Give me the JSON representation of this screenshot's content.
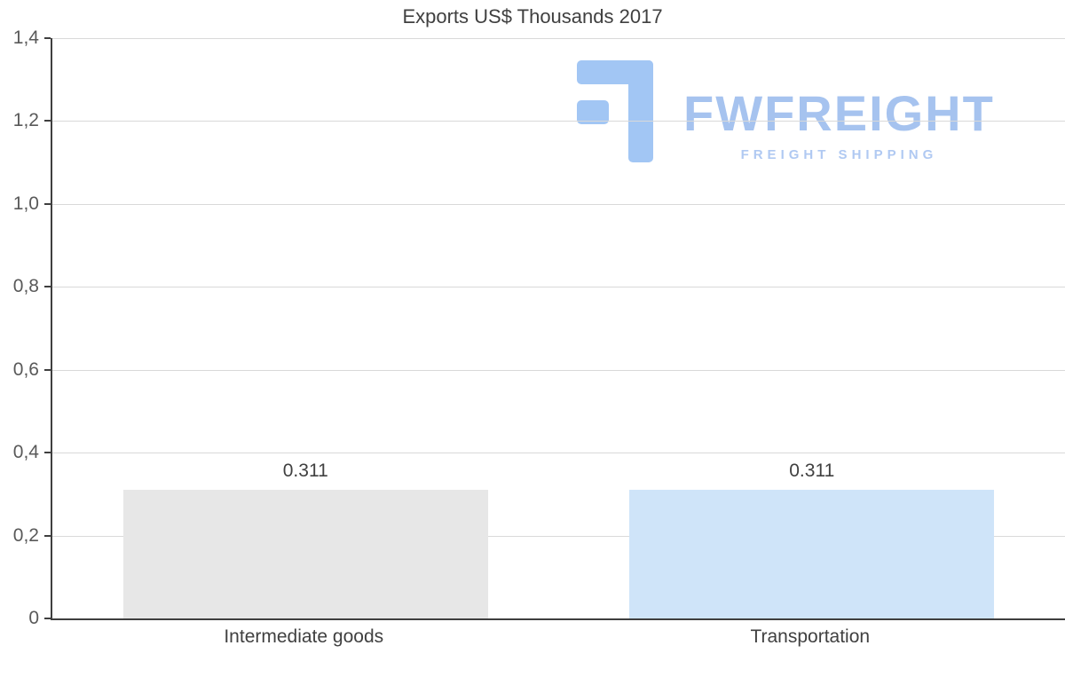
{
  "chart_data": {
    "type": "bar",
    "title": "Exports US$ Thousands 2017",
    "categories": [
      "Intermediate goods",
      "Transportation"
    ],
    "values": [
      0.311,
      0.311
    ],
    "value_labels": [
      "0.311",
      "0.311"
    ],
    "bar_colors": [
      "#e7e7e7",
      "#cfe4f9"
    ],
    "xlabel": "",
    "ylabel": "",
    "ylim": [
      0,
      1.4
    ],
    "y_ticks": [
      0,
      0.2,
      0.4,
      0.6,
      0.8,
      1.0,
      1.2,
      1.4
    ],
    "y_tick_labels": [
      "0",
      "0,2",
      "0,4",
      "0,6",
      "0,8",
      "1,0",
      "1,2",
      "1,4"
    ],
    "grid": true,
    "legend": "none",
    "axis_color": "#3f3f3f",
    "gridline_color": "#d9d9d9"
  },
  "watermark": {
    "brand": "FWFREIGHT",
    "tagline": "FREIGHT SHIPPING",
    "color": "#a6c3ef"
  }
}
